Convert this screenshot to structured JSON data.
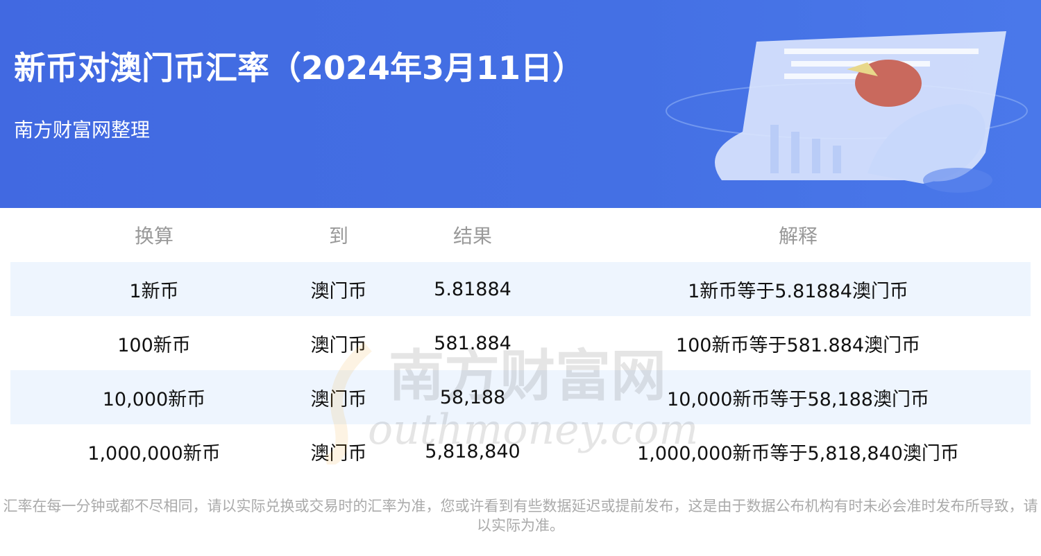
{
  "header": {
    "title": "新币对澳门币汇率（2024年3月11日）",
    "subtitle": "南方财富网整理"
  },
  "table": {
    "columns": [
      "换算",
      "到",
      "结果",
      "解释"
    ],
    "rows": [
      [
        "1新币",
        "澳门币",
        "5.81884",
        "1新币等于5.81884澳门币"
      ],
      [
        "100新币",
        "澳门币",
        "581.884",
        "100新币等于581.884澳门币"
      ],
      [
        "10,000新币",
        "澳门币",
        "58,188",
        "10,000新币等于58,188澳门币"
      ],
      [
        "1,000,000新币",
        "澳门币",
        "5,818,840",
        "1,000,000新币等于5,818,840澳门币"
      ]
    ]
  },
  "watermark": {
    "text": "南方财富网",
    "latin": "southmoney.com"
  },
  "footer": {
    "note": "汇率在每一分钟或都不尽相同，请以实际兑换或交易时的汇率为准，您或许看到有些数据延迟或提前发布，这是由于数据公布机构有时未必会准时发布所导致，请以实际为准。"
  },
  "colors": {
    "header_bg": "#4169e1",
    "row_alt": "#eef5fe",
    "header_text": "#999999"
  }
}
